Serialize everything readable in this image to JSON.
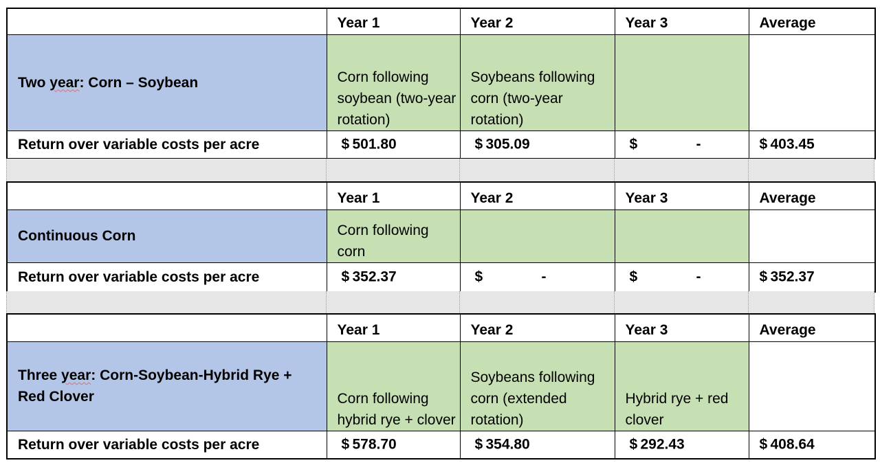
{
  "headers": {
    "year1": "Year 1",
    "year2": "Year 2",
    "year3": "Year 3",
    "average": "Average"
  },
  "rotations": [
    {
      "label_prefix": "Two ",
      "label_underlined": "year",
      "label_suffix": ": Corn – Soybean",
      "year1_text": "Corn following soybean (two-year rotation)",
      "year2_text": "Soybeans following corn (two-year rotation)",
      "year3_text": "",
      "return_label": "Return over variable costs per acre",
      "returns": {
        "year1": {
          "symbol": "$",
          "value": "501.80"
        },
        "year2": {
          "symbol": "$",
          "value": "305.09"
        },
        "year3": {
          "symbol": "$",
          "value": "-"
        },
        "average": {
          "symbol": "$",
          "value": "403.45"
        }
      }
    },
    {
      "label_prefix": "Continuous Corn",
      "label_underlined": "",
      "label_suffix": "",
      "year1_text": "Corn following corn",
      "year2_text": "",
      "year3_text": "",
      "return_label": "Return over variable costs per acre",
      "returns": {
        "year1": {
          "symbol": "$",
          "value": "352.37"
        },
        "year2": {
          "symbol": "$",
          "value": "-"
        },
        "year3": {
          "symbol": "$",
          "value": "-"
        },
        "average": {
          "symbol": "$",
          "value": "352.37"
        }
      }
    },
    {
      "label_prefix": "Three ",
      "label_underlined": "year",
      "label_suffix": ": Corn-Soybean-Hybrid Rye + Red Clover",
      "year1_text": "Corn following hybrid rye + clover",
      "year2_text": "Soybeans following corn (extended rotation)",
      "year3_text": "Hybrid rye + red clover",
      "return_label": "Return over variable costs per acre",
      "returns": {
        "year1": {
          "symbol": "$",
          "value": "578.70"
        },
        "year2": {
          "symbol": "$",
          "value": "354.80"
        },
        "year3": {
          "symbol": "$",
          "value": "292.43"
        },
        "average": {
          "symbol": "$",
          "value": "408.64"
        }
      }
    }
  ],
  "colors": {
    "label_fill": "#b4c6e7",
    "crop_fill": "#c6e0b4",
    "separator_fill": "#e6e6e6"
  }
}
